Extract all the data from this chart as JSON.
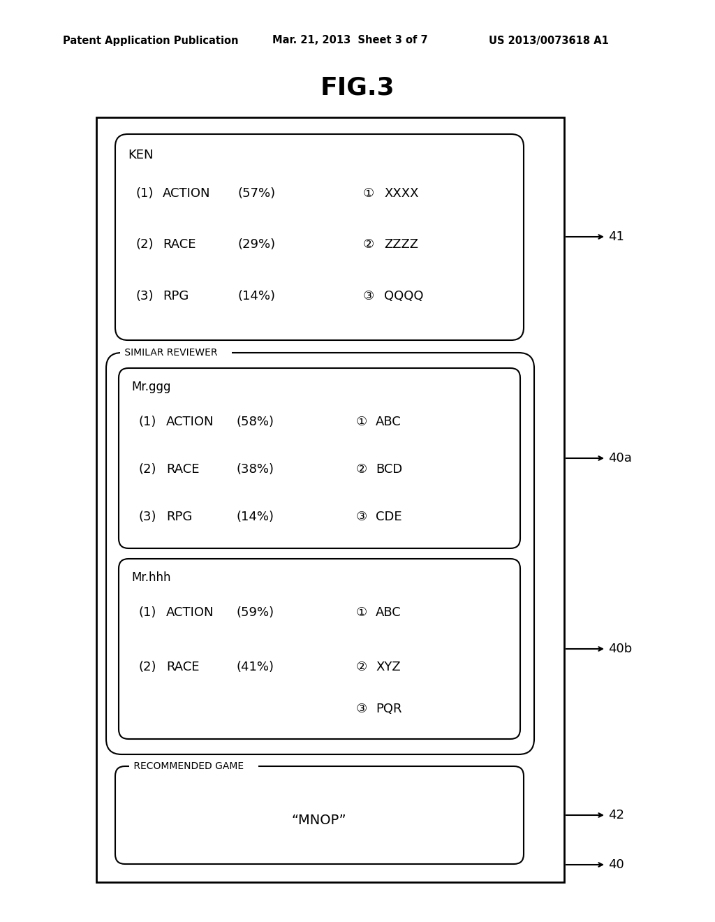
{
  "header_left": "Patent Application Publication",
  "header_mid": "Mar. 21, 2013  Sheet 3 of 7",
  "header_right": "US 2013/0073618 A1",
  "fig_label": "FIG.3",
  "box41": {
    "label": "KEN",
    "rows": [
      {
        "rank": "(1)",
        "cat": "ACTION",
        "pct": "(57%)",
        "num": "①",
        "game": "XXXX"
      },
      {
        "rank": "(2)",
        "cat": "RACE",
        "pct": "(29%)",
        "num": "②",
        "game": "ZZZZ"
      },
      {
        "rank": "(3)",
        "cat": "RPG",
        "pct": "(14%)",
        "num": "③",
        "game": "QQQQ"
      }
    ],
    "arrow_label": "41"
  },
  "similar_reviewer_label": "SIMILAR REVIEWER",
  "box40a": {
    "label": "Mr.ggg",
    "rows": [
      {
        "rank": "(1)",
        "cat": "ACTION",
        "pct": "(58%)",
        "num": "①",
        "game": "ABC"
      },
      {
        "rank": "(2)",
        "cat": "RACE",
        "pct": "(38%)",
        "num": "②",
        "game": "BCD"
      },
      {
        "rank": "(3)",
        "cat": "RPG",
        "pct": "(14%)",
        "num": "③",
        "game": "CDE"
      }
    ],
    "arrow_label": "40a"
  },
  "box40b": {
    "label": "Mr.hhh",
    "rows": [
      {
        "rank": "(1)",
        "cat": "ACTION",
        "pct": "(59%)",
        "num": "①",
        "game": "ABC"
      },
      {
        "rank": "(2)",
        "cat": "RACE",
        "pct": "(41%)",
        "num": "②",
        "game": "XYZ"
      },
      {
        "rank": "(3)",
        "cat": "",
        "pct": "",
        "num": "③",
        "game": "PQR"
      }
    ],
    "arrow_label": "40b"
  },
  "box42": {
    "section_label": "RECOMMENDED GAME",
    "content": "“MNOP”",
    "arrow_label": "42"
  },
  "outer_label": "40",
  "bg_color": "#ffffff"
}
